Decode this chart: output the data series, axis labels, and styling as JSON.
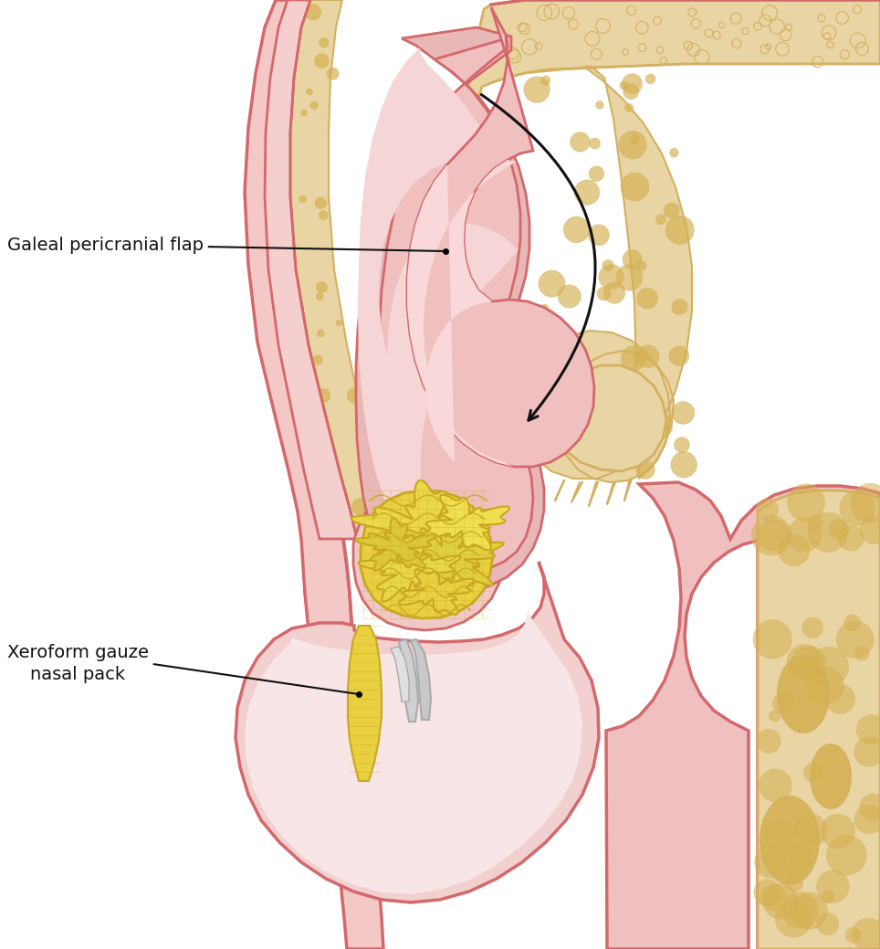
{
  "label_galeal": "Galeal pericranial flap",
  "label_xeroform_line1": "Xeroform gauze",
  "label_xeroform_line2": "    nasal pack",
  "bg_color": "#ffffff",
  "skin_red": "#d4686a",
  "skin_pink": "#f0b8b8",
  "skin_light_pink": "#f5cece",
  "tissue_pink": "#f2d0d0",
  "tissue_light": "#f8e8e8",
  "flap_pink": "#e8b0b0",
  "flap_light": "#f0c8c8",
  "bone_cream": "#e8d5a3",
  "bone_tan": "#d4b060",
  "bone_outline": "#c8a030",
  "gauze_yellow": "#e8d040",
  "gauze_dark": "#c8a820",
  "arrow_color": "#111111",
  "label_color": "#111111",
  "label_fontsize": 14
}
